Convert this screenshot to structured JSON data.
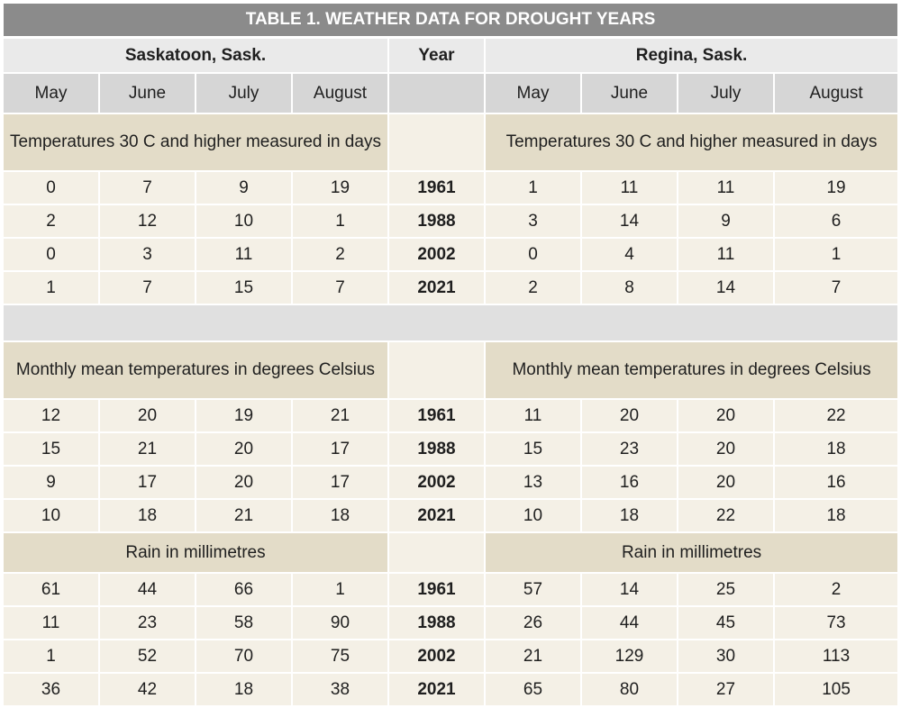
{
  "title": "TABLE 1. WEATHER DATA FOR DROUGHT YEARS",
  "stations": {
    "left": "Saskatoon, Sask.",
    "middle": "Year",
    "right": "Regina, Sask."
  },
  "months": [
    "May",
    "June",
    "July",
    "August"
  ],
  "sections": [
    {
      "label": "Temperatures 30 C and higher measured in days",
      "rows": [
        {
          "year": "1961",
          "saskatoon": [
            "0",
            "7",
            "9",
            "19"
          ],
          "regina": [
            "1",
            "11",
            "11",
            "19"
          ]
        },
        {
          "year": "1988",
          "saskatoon": [
            "2",
            "12",
            "10",
            "1"
          ],
          "regina": [
            "3",
            "14",
            "9",
            "6"
          ]
        },
        {
          "year": "2002",
          "saskatoon": [
            "0",
            "3",
            "11",
            "2"
          ],
          "regina": [
            "0",
            "4",
            "11",
            "1"
          ]
        },
        {
          "year": "2021",
          "saskatoon": [
            "1",
            "7",
            "15",
            "7"
          ],
          "regina": [
            "2",
            "8",
            "14",
            "7"
          ]
        }
      ]
    },
    {
      "label": "Monthly mean temperatures in degrees Celsius",
      "rows": [
        {
          "year": "1961",
          "saskatoon": [
            "12",
            "20",
            "19",
            "21"
          ],
          "regina": [
            "11",
            "20",
            "20",
            "22"
          ]
        },
        {
          "year": "1988",
          "saskatoon": [
            "15",
            "21",
            "20",
            "17"
          ],
          "regina": [
            "15",
            "23",
            "20",
            "18"
          ]
        },
        {
          "year": "2002",
          "saskatoon": [
            "9",
            "17",
            "20",
            "17"
          ],
          "regina": [
            "13",
            "16",
            "20",
            "16"
          ]
        },
        {
          "year": "2021",
          "saskatoon": [
            "10",
            "18",
            "21",
            "18"
          ],
          "regina": [
            "10",
            "18",
            "22",
            "18"
          ]
        }
      ]
    },
    {
      "label": "Rain in millimetres",
      "rows": [
        {
          "year": "1961",
          "saskatoon": [
            "61",
            "44",
            "66",
            "1"
          ],
          "regina": [
            "57",
            "14",
            "25",
            "2"
          ]
        },
        {
          "year": "1988",
          "saskatoon": [
            "11",
            "23",
            "58",
            "90"
          ],
          "regina": [
            "26",
            "44",
            "45",
            "73"
          ]
        },
        {
          "year": "2002",
          "saskatoon": [
            "1",
            "52",
            "70",
            "75"
          ],
          "regina": [
            "21",
            "129",
            "30",
            "113"
          ]
        },
        {
          "year": "2021",
          "saskatoon": [
            "36",
            "42",
            "18",
            "38"
          ],
          "regina": [
            "65",
            "80",
            "27",
            "105"
          ]
        }
      ]
    }
  ]
}
